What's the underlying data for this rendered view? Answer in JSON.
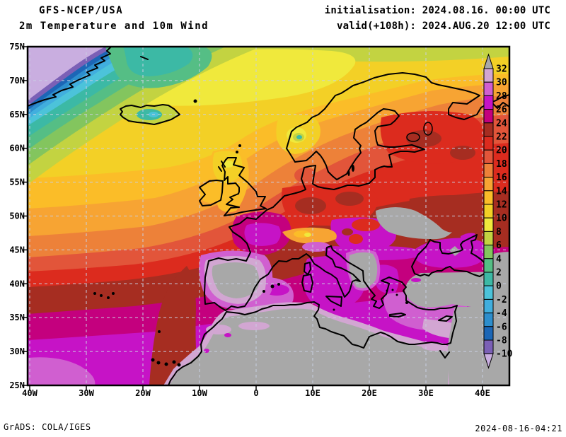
{
  "header": {
    "model": "GFS-NCEP/USA",
    "product": "2m Temperature and 10m Wind",
    "init": "initialisation: 2024.08.16. 00:00 UTC",
    "valid": "valid(+108h): 2024.AUG.20 12:00 UTC"
  },
  "map": {
    "lat_labels": [
      "75N",
      "70N",
      "65N",
      "60N",
      "55N",
      "50N",
      "45N",
      "40N",
      "35N",
      "30N",
      "25N"
    ],
    "lon_labels": [
      "40W",
      "30W",
      "20W",
      "10W",
      "0",
      "10E",
      "20E",
      "30E",
      "40E"
    ]
  },
  "colorbar": {
    "tick_labels": [
      "32",
      "30",
      "28",
      "26",
      "24",
      "22",
      "20",
      "18",
      "16",
      "14",
      "12",
      "10",
      "8",
      "6",
      "4",
      "2",
      "0",
      "-2",
      "-4",
      "-6",
      "-8",
      "-10"
    ],
    "segment_colors_top_to_bottom": [
      "#d2a6d2",
      "#d05fd0",
      "#c613c6",
      "#c4007e",
      "#a62d21",
      "#dc2b1e",
      "#e2553a",
      "#ed8139",
      "#f7a433",
      "#fbbd28",
      "#f3d026",
      "#f0e93c",
      "#c3d341",
      "#83c55e",
      "#55be85",
      "#3cb9a5",
      "#4cc3da",
      "#41aede",
      "#2d8ecd",
      "#1c66b6",
      "#7b60b6"
    ],
    "above_max_color": "#a8a8a8",
    "below_min_color": "#c9aee0"
  },
  "footer": {
    "credit": "GrADS: COLA/IGES",
    "timestamp": "2024-08-16-04:21"
  }
}
